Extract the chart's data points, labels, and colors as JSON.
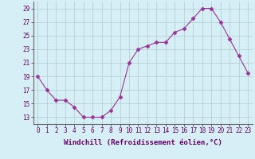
{
  "x": [
    0,
    1,
    2,
    3,
    4,
    5,
    6,
    7,
    8,
    9,
    10,
    11,
    12,
    13,
    14,
    15,
    16,
    17,
    18,
    19,
    20,
    21,
    22,
    23
  ],
  "y": [
    19,
    17,
    15.5,
    15.5,
    14.5,
    13,
    13,
    13,
    14,
    16,
    21,
    23,
    23.5,
    24,
    24,
    25.5,
    26,
    27.5,
    29,
    29,
    27,
    24.5,
    22,
    19.5
  ],
  "line_color": "#993399",
  "marker": "D",
  "marker_size": 2.5,
  "xlabel": "Windchill (Refroidissement éolien,°C)",
  "xlabel_fontsize": 6.5,
  "ylim": [
    12,
    30
  ],
  "xlim": [
    -0.5,
    23.5
  ],
  "yticks": [
    13,
    15,
    17,
    19,
    21,
    23,
    25,
    27,
    29
  ],
  "xticks": [
    0,
    1,
    2,
    3,
    4,
    5,
    6,
    7,
    8,
    9,
    10,
    11,
    12,
    13,
    14,
    15,
    16,
    17,
    18,
    19,
    20,
    21,
    22,
    23
  ],
  "xtick_labels": [
    "0",
    "1",
    "2",
    "3",
    "4",
    "5",
    "6",
    "7",
    "8",
    "9",
    "10",
    "11",
    "12",
    "13",
    "14",
    "15",
    "16",
    "17",
    "18",
    "19",
    "20",
    "21",
    "22",
    "23"
  ],
  "background_color": "#d6eef5",
  "grid_color": "#b0cccc",
  "spine_color": "#666666",
  "tick_fontsize": 5.5,
  "label_color": "#660066"
}
